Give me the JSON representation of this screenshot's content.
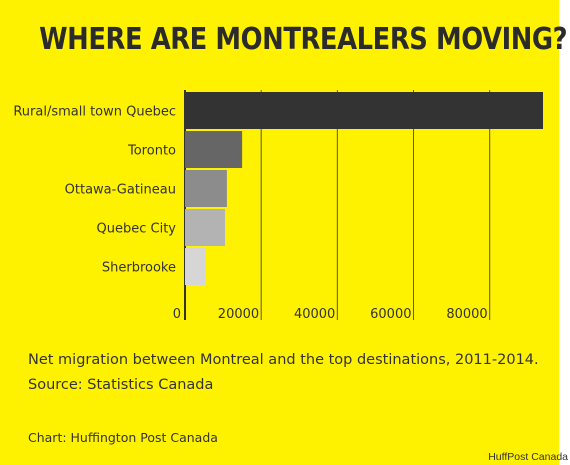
{
  "chart_data": {
    "type": "bar",
    "orientation": "horizontal",
    "title": "WHERE ARE MONTREALERS MOVING?",
    "categories": [
      "Rural/small town Quebec",
      "Toronto",
      "Ottawa-Gatineau",
      "Quebec City",
      "Sherbrooke"
    ],
    "values": [
      94000,
      15000,
      11000,
      10500,
      5500
    ],
    "bar_colors": [
      "#333333",
      "#666666",
      "#8c8c8c",
      "#b3b3b3",
      "#d6d6d6"
    ],
    "x_ticks": [
      0,
      20000,
      40000,
      60000,
      80000
    ],
    "xlim": [
      0,
      94000
    ],
    "grid": true,
    "xlabel": "",
    "ylabel": ""
  },
  "caption": {
    "line1": "Net migration between Montreal and the top destinations, 2011-2014.",
    "line2": "Source: Statistics Canada"
  },
  "credit": "Chart: Huffington Post Canada",
  "watermark": "HuffPost Canada",
  "colors": {
    "background": "#fff200",
    "text": "#2b2b2b",
    "grid": "#555555"
  }
}
